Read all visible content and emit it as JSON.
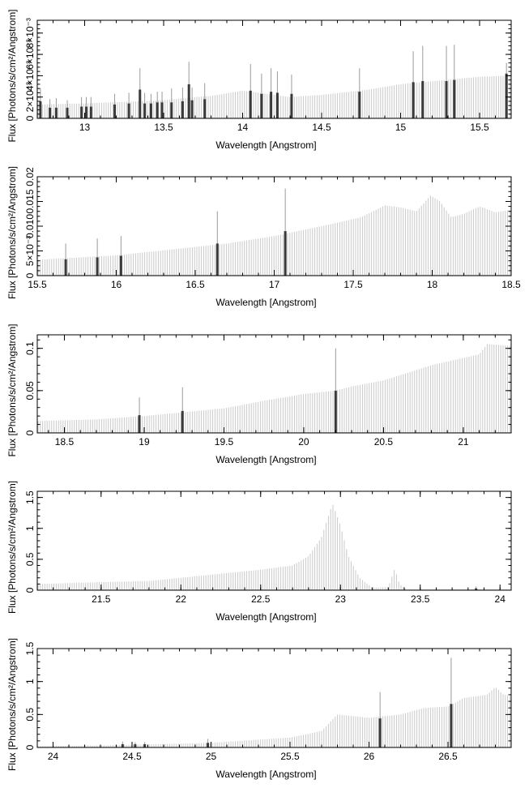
{
  "chart_data": [
    {
      "type": "bar",
      "xlabel": "Wavelength [Angstrom]",
      "ylabel": "Flux [Photons/s/cm²/Angstrom]",
      "xlim": [
        12.7,
        15.7
      ],
      "ylim": [
        0,
        0.0092
      ],
      "x_ticks": [
        13,
        13.5,
        14,
        14.5,
        15,
        15.5
      ],
      "x_tick_labels": [
        "13",
        "13.5",
        "14",
        "14.5",
        "15",
        "15.5"
      ],
      "y_ticks": [
        0,
        0.002,
        0.004,
        0.006,
        0.008
      ],
      "y_tick_labels": [
        "0",
        "2×10⁻³",
        "4×10⁻³",
        "6×10⁻³",
        "8×10⁻³"
      ],
      "continuum": [
        [
          12.7,
          0.0013
        ],
        [
          13.0,
          0.0014
        ],
        [
          13.5,
          0.0017
        ],
        [
          13.7,
          0.002
        ],
        [
          13.8,
          0.0021
        ],
        [
          14.0,
          0.0026
        ],
        [
          14.3,
          0.002
        ],
        [
          14.5,
          0.0022
        ],
        [
          14.8,
          0.0027
        ],
        [
          15.0,
          0.0032
        ],
        [
          15.5,
          0.0039
        ],
        [
          15.7,
          0.004
        ]
      ],
      "measured_bins": [
        {
          "x": 12.72,
          "y": 0.0016,
          "err": 0.0012
        },
        {
          "x": 12.78,
          "y": 0.001,
          "err": 0.0008
        },
        {
          "x": 12.82,
          "y": 0.001,
          "err": 0.0009
        },
        {
          "x": 12.89,
          "y": 0.001,
          "err": 0.0007
        },
        {
          "x": 12.98,
          "y": 0.0011,
          "err": 0.0009
        },
        {
          "x": 13.01,
          "y": 0.0011,
          "err": 0.0009
        },
        {
          "x": 13.04,
          "y": 0.0011,
          "err": 0.0009
        },
        {
          "x": 13.19,
          "y": 0.0013,
          "err": 0.001
        },
        {
          "x": 13.28,
          "y": 0.0014,
          "err": 0.001
        },
        {
          "x": 13.35,
          "y": 0.0027,
          "err": 0.002
        },
        {
          "x": 13.38,
          "y": 0.0014,
          "err": 0.001
        },
        {
          "x": 13.42,
          "y": 0.0014,
          "err": 0.0009
        },
        {
          "x": 13.46,
          "y": 0.0015,
          "err": 0.001
        },
        {
          "x": 13.49,
          "y": 0.0015,
          "err": 0.001
        },
        {
          "x": 13.55,
          "y": 0.0015,
          "err": 0.0013
        },
        {
          "x": 13.62,
          "y": 0.0016,
          "err": 0.0013
        },
        {
          "x": 13.66,
          "y": 0.0032,
          "err": 0.0021
        },
        {
          "x": 13.68,
          "y": 0.0017,
          "err": 0.0012
        },
        {
          "x": 13.76,
          "y": 0.0018,
          "err": 0.0015
        },
        {
          "x": 14.05,
          "y": 0.0026,
          "err": 0.0025
        },
        {
          "x": 14.12,
          "y": 0.0023,
          "err": 0.0019
        },
        {
          "x": 14.18,
          "y": 0.0025,
          "err": 0.0022
        },
        {
          "x": 14.22,
          "y": 0.0024,
          "err": 0.002
        },
        {
          "x": 14.31,
          "y": 0.0023,
          "err": 0.0018
        },
        {
          "x": 14.74,
          "y": 0.0025,
          "err": 0.0022
        },
        {
          "x": 15.08,
          "y": 0.0034,
          "err": 0.0029
        },
        {
          "x": 15.14,
          "y": 0.0035,
          "err": 0.0033
        },
        {
          "x": 15.29,
          "y": 0.0035,
          "err": 0.0033
        },
        {
          "x": 15.34,
          "y": 0.0036,
          "err": 0.0033
        },
        {
          "x": 15.67,
          "y": 0.0042,
          "err": 0.001
        }
      ]
    },
    {
      "type": "bar",
      "xlabel": "Wavelength [Angstrom]",
      "ylabel": "Flux [Photons/s/cm²/Angstrom]",
      "xlim": [
        15.5,
        18.5
      ],
      "ylim": [
        0,
        0.02
      ],
      "x_ticks": [
        15.5,
        16,
        16.5,
        17,
        17.5,
        18,
        18.5
      ],
      "x_tick_labels": [
        "15.5",
        "16",
        "16.5",
        "17",
        "17.5",
        "18",
        "18.5"
      ],
      "y_ticks": [
        0,
        0.005,
        0.01,
        0.015,
        0.02
      ],
      "y_tick_labels": [
        "0",
        "5×10⁻³",
        "0.010",
        "0.015",
        "0.02"
      ],
      "continuum": [
        [
          15.5,
          0.0032
        ],
        [
          16.0,
          0.0041
        ],
        [
          16.5,
          0.0058
        ],
        [
          16.7,
          0.0065
        ],
        [
          17.0,
          0.008
        ],
        [
          17.3,
          0.01
        ],
        [
          17.55,
          0.0118
        ],
        [
          17.7,
          0.0142
        ],
        [
          17.8,
          0.0138
        ],
        [
          17.9,
          0.013
        ],
        [
          17.99,
          0.0162
        ],
        [
          18.05,
          0.015
        ],
        [
          18.12,
          0.0118
        ],
        [
          18.2,
          0.0125
        ],
        [
          18.3,
          0.014
        ],
        [
          18.4,
          0.0128
        ],
        [
          18.5,
          0.0133
        ]
      ],
      "measured_bins": [
        {
          "x": 15.68,
          "y": 0.0033,
          "err": 0.0032
        },
        {
          "x": 15.88,
          "y": 0.0037,
          "err": 0.0038
        },
        {
          "x": 16.03,
          "y": 0.004,
          "err": 0.004
        },
        {
          "x": 16.64,
          "y": 0.0065,
          "err": 0.0065
        },
        {
          "x": 17.07,
          "y": 0.009,
          "err": 0.0086
        }
      ]
    },
    {
      "type": "bar",
      "xlabel": "Wavelength [Angstrom]",
      "ylabel": "Flux [Photons/s/cm²/Angstrom]",
      "xlim": [
        18.33,
        21.3
      ],
      "ylim": [
        0,
        0.116
      ],
      "x_ticks": [
        18.5,
        19,
        19.5,
        20,
        20.5,
        21
      ],
      "x_tick_labels": [
        "18.5",
        "19",
        "19.5",
        "20",
        "20.5",
        "21"
      ],
      "y_ticks": [
        0,
        0.05,
        0.1
      ],
      "y_tick_labels": [
        "0",
        "0.05",
        "0.1"
      ],
      "continuum": [
        [
          18.33,
          0.014
        ],
        [
          18.7,
          0.016
        ],
        [
          19.0,
          0.02
        ],
        [
          19.5,
          0.029
        ],
        [
          19.75,
          0.038
        ],
        [
          20.0,
          0.046
        ],
        [
          20.2,
          0.05
        ],
        [
          20.3,
          0.055
        ],
        [
          20.5,
          0.062
        ],
        [
          20.8,
          0.08
        ],
        [
          21.1,
          0.093
        ],
        [
          21.15,
          0.105
        ],
        [
          21.3,
          0.103
        ]
      ],
      "measured_bins": [
        {
          "x": 18.97,
          "y": 0.021,
          "err": 0.021
        },
        {
          "x": 19.24,
          "y": 0.026,
          "err": 0.028
        },
        {
          "x": 20.2,
          "y": 0.05,
          "err": 0.05
        }
      ]
    },
    {
      "type": "bar",
      "xlabel": "Wavelength [Angstrom]",
      "ylabel": "Flux [Photons/s/cm²/Angstrom]",
      "xlim": [
        21.1,
        24.07
      ],
      "ylim": [
        0,
        1.6
      ],
      "x_ticks": [
        21.5,
        22,
        22.5,
        23,
        23.5,
        24
      ],
      "x_tick_labels": [
        "21.5",
        "22",
        "22.5",
        "23",
        "23.5",
        "24"
      ],
      "y_ticks": [
        0,
        0.5,
        1,
        1.5
      ],
      "y_tick_labels": [
        "0",
        "0.5",
        "1",
        "1.5"
      ],
      "continuum": [
        [
          21.1,
          0.1
        ],
        [
          21.5,
          0.13
        ],
        [
          21.8,
          0.15
        ],
        [
          22.0,
          0.2
        ],
        [
          22.3,
          0.28
        ],
        [
          22.5,
          0.33
        ],
        [
          22.7,
          0.4
        ],
        [
          22.8,
          0.55
        ],
        [
          22.88,
          0.85
        ],
        [
          22.95,
          1.4
        ],
        [
          23.0,
          1.05
        ],
        [
          23.05,
          0.55
        ],
        [
          23.12,
          0.2
        ],
        [
          23.2,
          0.04
        ],
        [
          23.3,
          0.05
        ],
        [
          23.34,
          0.35
        ],
        [
          23.37,
          0.1
        ],
        [
          23.42,
          0.0
        ],
        [
          24.07,
          0.0
        ]
      ],
      "measured_bins": [
        {
          "x": 23.85,
          "y": 0.03,
          "err": 0.03
        }
      ]
    },
    {
      "type": "bar",
      "xlabel": "Wavelength [Angstrom]",
      "ylabel": "Flux [Photons/s/cm²/Angstrom]",
      "xlim": [
        23.9,
        26.9
      ],
      "ylim": [
        0,
        1.5
      ],
      "x_ticks": [
        24,
        24.5,
        25,
        25.5,
        26,
        26.5
      ],
      "x_tick_labels": [
        "24",
        "24.5",
        "25",
        "25.5",
        "26",
        "26.5"
      ],
      "y_ticks": [
        0,
        0.5,
        1,
        1.5
      ],
      "y_tick_labels": [
        "0",
        "0.5",
        "1",
        "1.5"
      ],
      "continuum": [
        [
          23.9,
          0.02
        ],
        [
          24.5,
          0.04
        ],
        [
          25.0,
          0.07
        ],
        [
          25.5,
          0.15
        ],
        [
          25.7,
          0.25
        ],
        [
          25.8,
          0.5
        ],
        [
          26.0,
          0.45
        ],
        [
          26.2,
          0.5
        ],
        [
          26.35,
          0.6
        ],
        [
          26.5,
          0.62
        ],
        [
          26.6,
          0.75
        ],
        [
          26.75,
          0.8
        ],
        [
          26.8,
          0.92
        ],
        [
          26.85,
          0.8
        ],
        [
          26.9,
          0.78
        ]
      ],
      "measured_bins": [
        {
          "x": 24.44,
          "y": 0.05,
          "err": 0.04
        },
        {
          "x": 24.52,
          "y": 0.05,
          "err": 0.03
        },
        {
          "x": 24.58,
          "y": 0.05,
          "err": 0.03
        },
        {
          "x": 24.98,
          "y": 0.07,
          "err": 0.06
        },
        {
          "x": 26.07,
          "y": 0.44,
          "err": 0.4
        },
        {
          "x": 26.52,
          "y": 0.66,
          "err": 0.7
        }
      ]
    }
  ]
}
